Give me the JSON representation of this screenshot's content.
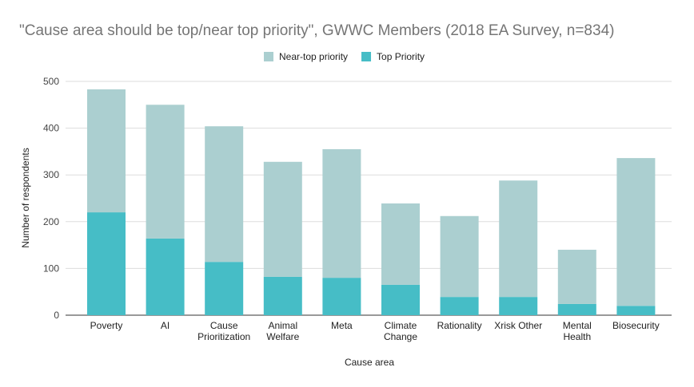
{
  "chart_data": {
    "type": "bar",
    "stacked": true,
    "title": "\"Cause area should be top/near top priority\", GWWC Members (2018 EA Survey, n=834)",
    "xlabel": "Cause area",
    "ylabel": "Number of respondents",
    "ylim": [
      0,
      500
    ],
    "yticks": [
      0,
      100,
      200,
      300,
      400,
      500
    ],
    "grid": true,
    "legend_position": "top",
    "categories": [
      [
        "Poverty"
      ],
      [
        "AI"
      ],
      [
        "Cause",
        "Prioritization"
      ],
      [
        "Animal",
        "Welfare"
      ],
      [
        "Meta"
      ],
      [
        "Climate",
        "Change"
      ],
      [
        "Rationality"
      ],
      [
        "Xrisk Other"
      ],
      [
        "Mental",
        "Health"
      ],
      [
        "Biosecurity"
      ]
    ],
    "series": [
      {
        "name": "Top Priority",
        "color": "#46bdc6",
        "values": [
          220,
          164,
          114,
          82,
          80,
          65,
          39,
          39,
          24,
          20
        ]
      },
      {
        "name": "Near-top priority",
        "color": "#abcfd0",
        "values": [
          263,
          286,
          290,
          246,
          275,
          174,
          173,
          249,
          116,
          316
        ]
      }
    ],
    "legend_order": [
      1,
      0
    ]
  }
}
